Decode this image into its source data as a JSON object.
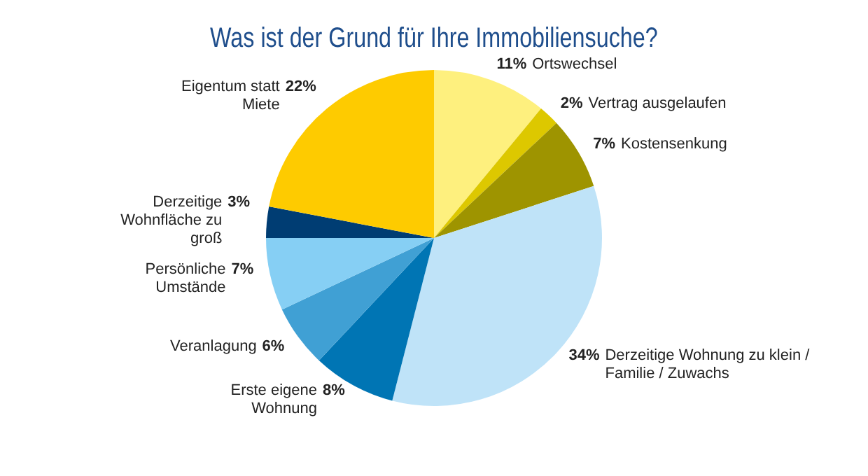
{
  "chart_data": {
    "type": "pie",
    "title": "Was ist der Grund für Ihre Immobiliensuche?",
    "categories": [
      "Ortswechsel",
      "Vertrag ausgelaufen",
      "Kostensenkung",
      "Derzeitige Wohnung zu klein / Familie / Zuwachs",
      "Erste eigene Wohnung",
      "Veranlagung",
      "Persönliche Umstände",
      "Derzeitige Wohnfläche zu groß",
      "Eigentum statt Miete"
    ],
    "values": [
      11,
      2,
      7,
      34,
      8,
      6,
      7,
      3,
      22
    ],
    "value_labels": [
      "11%",
      "2%",
      "7%",
      "34%",
      "8%",
      "6%",
      "7%",
      "3%",
      "22%"
    ],
    "colors": [
      "#fef07e",
      "#ddc800",
      "#9e9400",
      "#bfe3f8",
      "#0075b4",
      "#40a0d4",
      "#86cff4",
      "#003d73",
      "#fecb00"
    ]
  }
}
